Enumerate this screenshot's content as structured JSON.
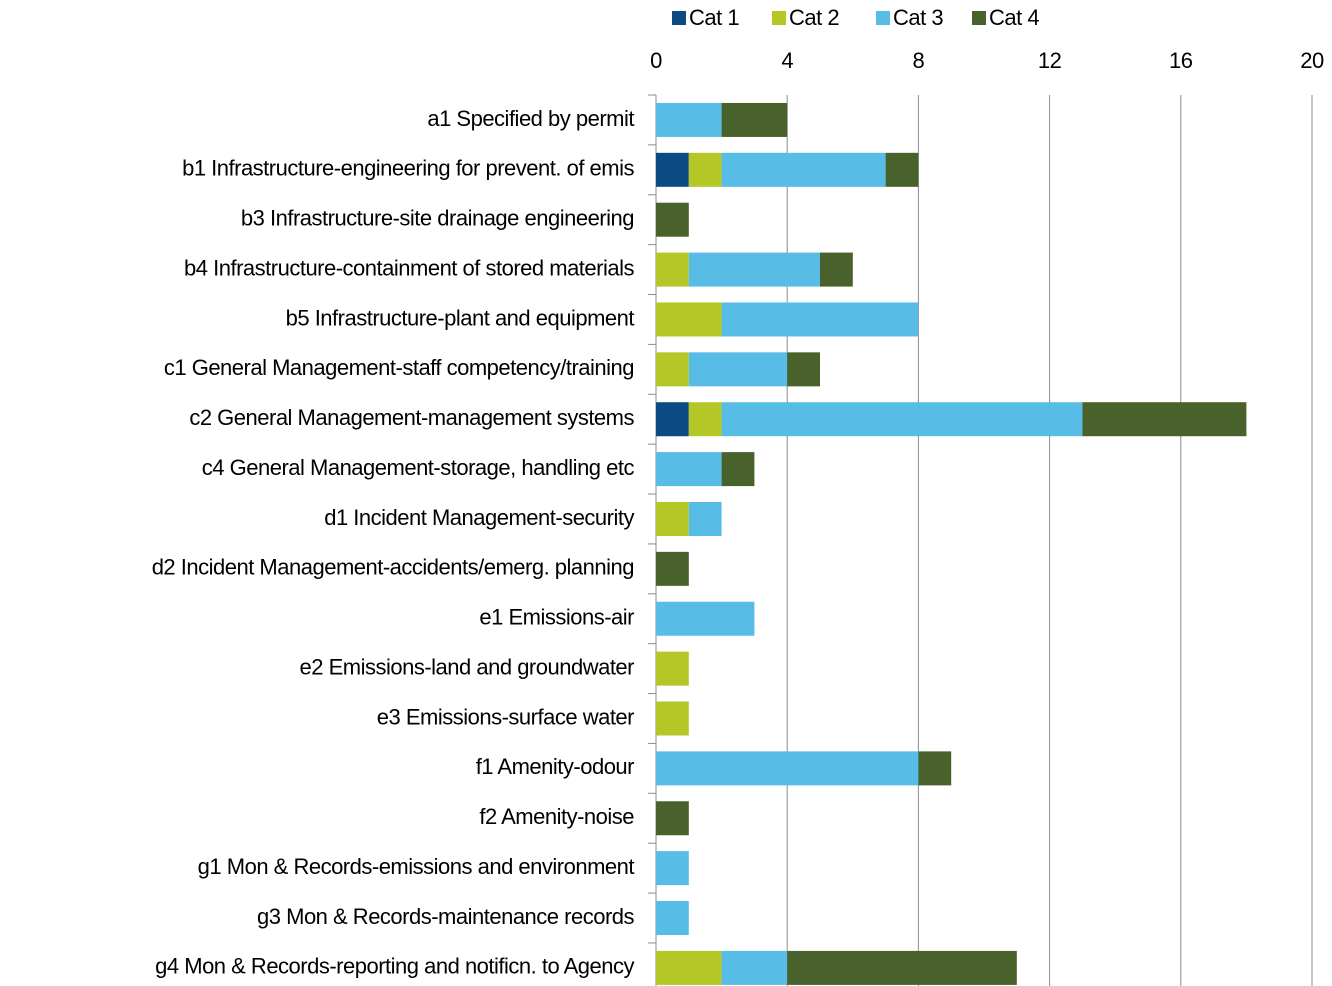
{
  "chart_data": {
    "type": "stacked_barh",
    "categories": [
      "a1 Specified by permit",
      "b1 Infrastructure-engineering for prevent. of emis",
      "b3 Infrastructure-site drainage engineering",
      "b4 Infrastructure-containment of stored materials",
      "b5 Infrastructure-plant and equipment",
      "c1 General Management-staff competency/training",
      "c2 General Management-management systems",
      "c4 General Management-storage, handling etc",
      "d1 Incident Management-security",
      "d2 Incident Management-accidents/emerg. planning",
      "e1 Emissions-air",
      "e2 Emissions-land and groundwater",
      "e3 Emissions-surface water",
      "f1 Amenity-odour",
      "f2 Amenity-noise",
      "g1 Mon & Records-emissions and environment",
      "g3 Mon & Records-maintenance records",
      "g4 Mon & Records-reporting and notificn. to Agency"
    ],
    "series": [
      {
        "name": "Cat 1",
        "color": "#0c4a84",
        "values": [
          0,
          1,
          0,
          0,
          0,
          0,
          1,
          0,
          0,
          0,
          0,
          0,
          0,
          0,
          0,
          0,
          0,
          0
        ]
      },
      {
        "name": "Cat 2",
        "color": "#b5c726",
        "values": [
          0,
          1,
          0,
          1,
          2,
          1,
          1,
          0,
          1,
          0,
          0,
          1,
          1,
          0,
          0,
          0,
          0,
          2
        ]
      },
      {
        "name": "Cat 3",
        "color": "#57bce6",
        "values": [
          2,
          5,
          0,
          4,
          6,
          3,
          11,
          2,
          1,
          0,
          3,
          0,
          0,
          8,
          0,
          1,
          1,
          2
        ]
      },
      {
        "name": "Cat 4",
        "color": "#49612a",
        "values": [
          2,
          1,
          1,
          1,
          0,
          1,
          5,
          1,
          0,
          1,
          0,
          0,
          0,
          1,
          1,
          0,
          0,
          7
        ]
      }
    ],
    "xlim": [
      0,
      20
    ],
    "xticks": [
      0,
      4,
      8,
      12,
      16,
      20
    ],
    "grid": true,
    "legend": "top"
  }
}
